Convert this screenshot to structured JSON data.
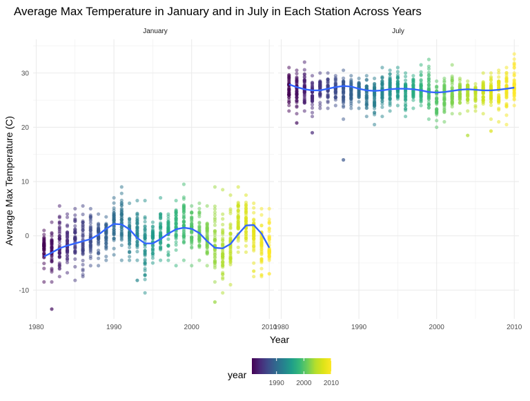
{
  "chart_data": {
    "type": "scatter",
    "title": "Average Max Temperature in January and in July in Each Station Across Years",
    "xlabel": "Year",
    "ylabel": "Average Max Temperature (C)",
    "xlim": [
      1980,
      2010
    ],
    "ylim": [
      -15,
      36
    ],
    "x_ticks": [
      1980,
      1990,
      2000,
      2010
    ],
    "y_ticks": [
      -10,
      0,
      10,
      20,
      30
    ],
    "grid": true,
    "point_alpha": 0.5,
    "smooth_color": "#3366FF",
    "panel_grid_color": "#EBEBEB",
    "legend": {
      "title": "year",
      "position": "bottom",
      "type": "colorbar",
      "range": [
        1981,
        2010
      ],
      "ticks": [
        1990,
        2000,
        2010
      ],
      "palette": "viridis"
    },
    "panels": [
      {
        "name": "January",
        "years": [
          1981,
          1982,
          1983,
          1984,
          1985,
          1986,
          1987,
          1988,
          1989,
          1990,
          1991,
          1992,
          1993,
          1994,
          1995,
          1996,
          1997,
          1998,
          1999,
          2000,
          2001,
          2002,
          2003,
          2004,
          2005,
          2006,
          2007,
          2008,
          2009,
          2010
        ],
        "y_min": [
          -8.5,
          -8.5,
          -7.5,
          -6.8,
          -8.2,
          -7.5,
          -5.5,
          -5.5,
          -4.5,
          -3.5,
          -4.5,
          -4.5,
          -4.5,
          -10.5,
          -5.0,
          -4.5,
          -4.5,
          -5.5,
          -4.5,
          -5.5,
          -4.5,
          -5.5,
          -8.5,
          -10.5,
          -9.0,
          -3.0,
          -3.0,
          -7.5,
          -7.5,
          -4.5
        ],
        "y_max": [
          1.0,
          2.5,
          5.5,
          4.0,
          5.0,
          5.5,
          5.0,
          4.0,
          3.5,
          7.0,
          9.0,
          6.0,
          6.5,
          6.5,
          2.5,
          7.0,
          4.0,
          6.5,
          9.5,
          5.5,
          6.0,
          5.5,
          9.0,
          8.5,
          7.5,
          9.0,
          7.5,
          6.0,
          5.0,
          5.0
        ],
        "y_mean": [
          -2.0,
          -2.5,
          -1.5,
          -1.5,
          -1.0,
          -0.8,
          0.0,
          0.2,
          0.5,
          2.5,
          2.5,
          0.5,
          0.5,
          -2.0,
          -0.5,
          0.5,
          1.0,
          2.0,
          2.0,
          1.0,
          0.0,
          -0.5,
          -2.0,
          -3.0,
          -1.5,
          2.5,
          2.5,
          0.5,
          -1.0,
          -2.5
        ],
        "outliers": [
          [
            1982,
            -13.5
          ],
          [
            1993,
            -8.2
          ],
          [
            2003,
            -12.2
          ],
          [
            2010,
            -7.0
          ],
          [
            2008,
            -6.5
          ],
          [
            2009,
            -7.2
          ]
        ],
        "smooth": [
          [
            1981,
            -3.8
          ],
          [
            1982,
            -3.1
          ],
          [
            1983,
            -2.3
          ],
          [
            1984,
            -1.8
          ],
          [
            1985,
            -1.4
          ],
          [
            1986,
            -1.0
          ],
          [
            1987,
            -0.6
          ],
          [
            1988,
            0.2
          ],
          [
            1989,
            1.3
          ],
          [
            1990,
            2.2
          ],
          [
            1991,
            2.1
          ],
          [
            1992,
            1.2
          ],
          [
            1993,
            -0.4
          ],
          [
            1994,
            -1.4
          ],
          [
            1995,
            -1.4
          ],
          [
            1996,
            -0.6
          ],
          [
            1997,
            0.4
          ],
          [
            1998,
            1.2
          ],
          [
            1999,
            1.5
          ],
          [
            2000,
            1.3
          ],
          [
            2001,
            0.5
          ],
          [
            2002,
            -1.0
          ],
          [
            2003,
            -2.2
          ],
          [
            2004,
            -2.3
          ],
          [
            2005,
            -1.5
          ],
          [
            2006,
            0.3
          ],
          [
            2007,
            1.9
          ],
          [
            2008,
            2.0
          ],
          [
            2009,
            0.4
          ],
          [
            2010,
            -2.2
          ]
        ]
      },
      {
        "name": "July",
        "years": [
          1981,
          1982,
          1983,
          1984,
          1985,
          1986,
          1987,
          1988,
          1989,
          1990,
          1991,
          1992,
          1993,
          1994,
          1995,
          1996,
          1997,
          1998,
          1999,
          2000,
          2001,
          2002,
          2003,
          2004,
          2005,
          2006,
          2007,
          2008,
          2009,
          2010
        ],
        "y_min": [
          23.0,
          22.5,
          23.0,
          22.0,
          23.5,
          23.5,
          24.0,
          21.5,
          23.5,
          23.5,
          22.0,
          20.5,
          22.0,
          23.0,
          24.0,
          22.0,
          23.5,
          24.0,
          21.5,
          20.0,
          21.0,
          22.5,
          22.5,
          23.0,
          23.0,
          22.5,
          21.5,
          21.0,
          20.5,
          24.0
        ],
        "y_max": [
          31.0,
          30.5,
          32.0,
          29.5,
          30.0,
          30.0,
          29.5,
          30.5,
          29.5,
          29.0,
          29.5,
          29.0,
          31.0,
          30.5,
          31.0,
          30.0,
          29.5,
          31.5,
          32.5,
          28.5,
          29.0,
          31.5,
          29.0,
          28.5,
          28.0,
          30.0,
          30.0,
          30.5,
          31.0,
          33.5
        ],
        "y_mean": [
          27.0,
          27.0,
          27.5,
          26.5,
          27.0,
          27.2,
          27.0,
          27.0,
          26.8,
          27.0,
          26.5,
          26.5,
          27.0,
          27.0,
          27.2,
          27.0,
          27.0,
          26.8,
          26.5,
          26.2,
          26.2,
          26.5,
          26.8,
          27.0,
          26.8,
          26.5,
          26.5,
          26.8,
          27.0,
          28.0
        ],
        "outliers": [
          [
            1984,
            19.0
          ],
          [
            1988,
            14.0
          ],
          [
            1982,
            20.8
          ],
          [
            2004,
            18.5
          ],
          [
            2007,
            19.3
          ]
        ],
        "smooth": [
          [
            1981,
            27.9
          ],
          [
            1982,
            27.4
          ],
          [
            1983,
            27.0
          ],
          [
            1984,
            26.8
          ],
          [
            1985,
            26.8
          ],
          [
            1986,
            27.1
          ],
          [
            1987,
            27.4
          ],
          [
            1988,
            27.6
          ],
          [
            1989,
            27.5
          ],
          [
            1990,
            27.1
          ],
          [
            1991,
            26.8
          ],
          [
            1992,
            26.7
          ],
          [
            1993,
            26.8
          ],
          [
            1994,
            27.0
          ],
          [
            1995,
            27.1
          ],
          [
            1996,
            27.1
          ],
          [
            1997,
            27.0
          ],
          [
            1998,
            26.8
          ],
          [
            1999,
            26.5
          ],
          [
            2000,
            26.4
          ],
          [
            2001,
            26.5
          ],
          [
            2002,
            26.7
          ],
          [
            2003,
            26.9
          ],
          [
            2004,
            27.0
          ],
          [
            2005,
            26.9
          ],
          [
            2006,
            26.8
          ],
          [
            2007,
            26.8
          ],
          [
            2008,
            26.9
          ],
          [
            2009,
            27.1
          ],
          [
            2010,
            27.3
          ]
        ]
      }
    ]
  }
}
